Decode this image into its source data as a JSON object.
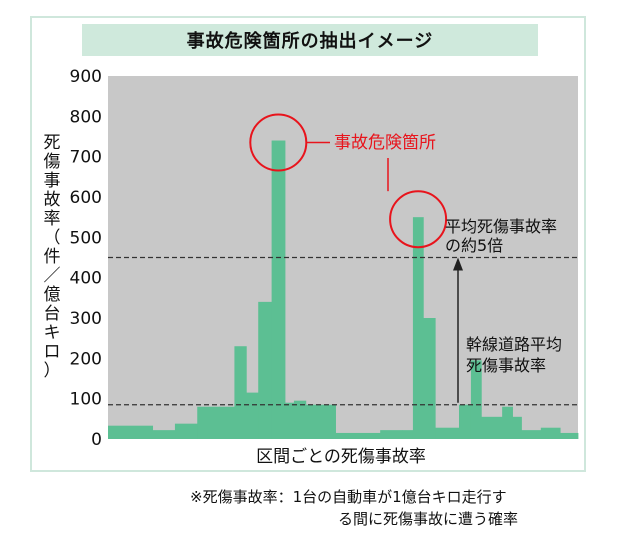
{
  "chart_data": {
    "type": "bar",
    "title": "事故危険箇所の抽出イメージ",
    "xlabel": "区間ごとの死傷事故率",
    "ylabel": "死傷事故率（件／億台キロ）",
    "ylim": [
      0,
      900
    ],
    "yticks": [
      0,
      100,
      200,
      300,
      400,
      500,
      600,
      700,
      800,
      900
    ],
    "grid": false,
    "colors": {
      "bar": "#5cbf93",
      "plot_bg": "#c8c8c8",
      "highlight": "#e8141c",
      "reference_line": "#333333"
    },
    "bars": [
      {
        "span": 3.0,
        "value": 33
      },
      {
        "span": 1.5,
        "value": 22
      },
      {
        "span": 1.5,
        "value": 38
      },
      {
        "span": 1.5,
        "value": 80
      },
      {
        "span": 1.0,
        "value": 80
      },
      {
        "span": 0.8,
        "value": 230
      },
      {
        "span": 0.8,
        "value": 115
      },
      {
        "span": 0.9,
        "value": 340
      },
      {
        "span": 0.9,
        "value": 740
      },
      {
        "span": 0.6,
        "value": 90
      },
      {
        "span": 0.8,
        "value": 95
      },
      {
        "span": 2.0,
        "value": 85
      },
      {
        "span": 3.0,
        "value": 15
      },
      {
        "span": 1.5,
        "value": 22
      },
      {
        "span": 0.7,
        "value": 22
      },
      {
        "span": 0.7,
        "value": 550
      },
      {
        "span": 0.8,
        "value": 300
      },
      {
        "span": 1.6,
        "value": 28
      },
      {
        "span": 0.8,
        "value": 85
      },
      {
        "span": 0.7,
        "value": 195
      },
      {
        "span": 1.4,
        "value": 55
      },
      {
        "span": 0.7,
        "value": 80
      },
      {
        "span": 0.6,
        "value": 55
      },
      {
        "span": 1.3,
        "value": 22
      },
      {
        "span": 1.3,
        "value": 28
      },
      {
        "span": 1.2,
        "value": 15
      }
    ],
    "reference_lines": [
      {
        "value": 85,
        "label": "幹線道路平均死傷事故率"
      },
      {
        "value": 450,
        "label": "平均死傷事故率の約5倍"
      }
    ],
    "annotations": {
      "highlight_label": "事故危険箇所",
      "highlighted_bar_indices": [
        8,
        15
      ],
      "avg_label_line1": "幹線道路平均",
      "avg_label_line2": "死傷事故率",
      "times5_label_line1": "平均死傷事故率",
      "times5_label_line2": "の約5倍"
    }
  },
  "note": {
    "line1": "※死傷事故率：1台の自動車が1億台キロ走行す",
    "line2": "る間に死傷事故に遭う確率"
  }
}
